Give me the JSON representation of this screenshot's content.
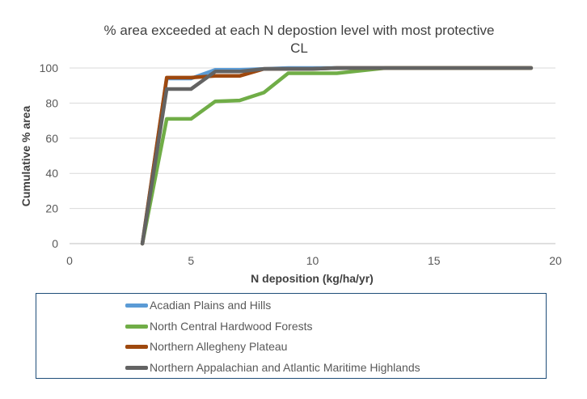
{
  "chart_data": {
    "type": "line",
    "title": "% area exceeded at each N depostion level with most protective",
    "title_line2": "CL",
    "xlabel": "N deposition (kg/ha/yr)",
    "ylabel": "Cumulative % area",
    "xlim": [
      0,
      20
    ],
    "ylim": [
      0,
      100
    ],
    "xticks": [
      "0",
      "5",
      "10",
      "15",
      "20"
    ],
    "yticks": [
      "0",
      "20",
      "40",
      "60",
      "80",
      "100"
    ],
    "grid": "horizontal",
    "legend_placement": "bottom",
    "series": [
      {
        "name": "Acadian Plains and Hills",
        "color": "#5b9bd5",
        "x": [
          3,
          4,
          5,
          6,
          7,
          8,
          9,
          10,
          11,
          12,
          13,
          14,
          15,
          16,
          17,
          18,
          19
        ],
        "y": [
          0,
          94,
          94,
          99,
          99,
          99.5,
          100,
          100,
          100,
          100,
          100,
          100,
          100,
          100,
          100,
          100,
          100
        ]
      },
      {
        "name": "North Central Hardwood Forests",
        "color": "#70ad47",
        "x": [
          3,
          4,
          5,
          6,
          7,
          8,
          9,
          10,
          11,
          12,
          13,
          14,
          15,
          16,
          17,
          18,
          19
        ],
        "y": [
          0,
          71,
          71,
          81,
          81.5,
          86,
          97,
          97,
          97,
          98.5,
          100,
          100,
          100,
          100,
          100,
          100,
          100
        ]
      },
      {
        "name": "Northern Allegheny Plateau",
        "color": "#9e480e",
        "x": [
          3,
          4,
          5,
          6,
          7,
          8,
          9,
          10,
          11,
          12,
          13,
          14,
          15,
          16,
          17,
          18,
          19
        ],
        "y": [
          0,
          94.5,
          94.5,
          95.5,
          95.5,
          99.5,
          99.5,
          99.5,
          100,
          100,
          100,
          100,
          100,
          100,
          100,
          100,
          100
        ]
      },
      {
        "name": "Northern Appalachian and Atlantic Maritime Highlands",
        "color": "#636363",
        "x": [
          3,
          4,
          5,
          6,
          7,
          8,
          9,
          10,
          11,
          12,
          13,
          14,
          15,
          16,
          17,
          18,
          19
        ],
        "y": [
          0,
          88,
          88,
          98,
          98,
          99.5,
          99.5,
          99.5,
          100,
          100,
          100,
          100,
          100,
          100,
          100,
          100,
          100
        ]
      }
    ]
  }
}
